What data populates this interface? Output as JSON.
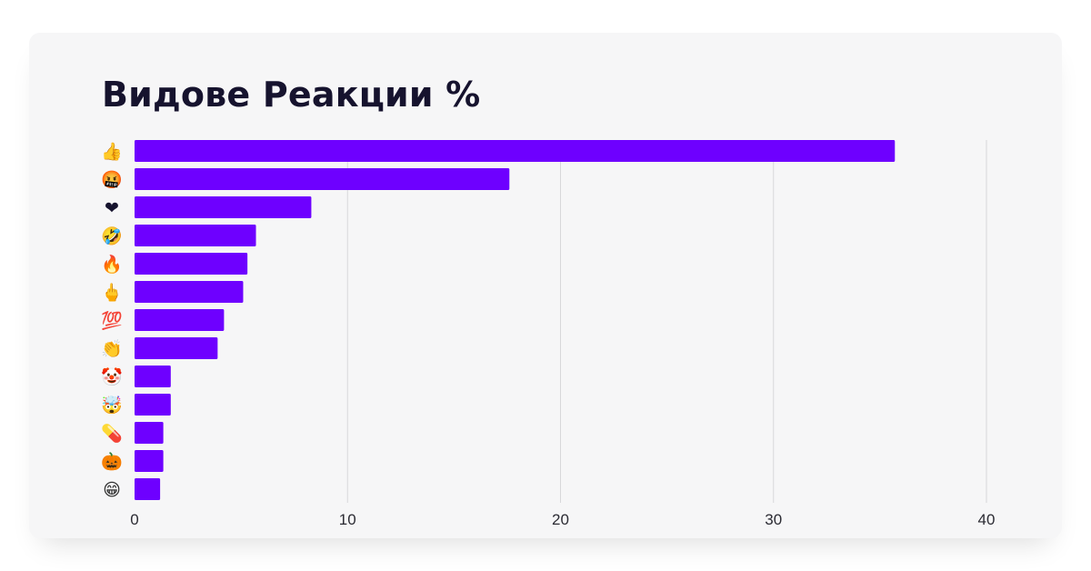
{
  "chart_data": {
    "type": "bar",
    "orientation": "horizontal",
    "title": "Видове Реакции %",
    "categories": [
      "👍",
      "🤬",
      "❤",
      "🤣",
      "🔥",
      "🖕",
      "💯",
      "👏",
      "🤡",
      "🤯",
      "💊",
      "🎃",
      "😁"
    ],
    "icons": [
      "thumbs-up",
      "face-with-symbols-on-mouth",
      "heart",
      "rolling-on-floor-laughing",
      "fire",
      "middle-finger",
      "hundred-points",
      "clapping-hands",
      "clown-face",
      "exploding-head",
      "pill",
      "jack-o-lantern",
      "beaming-face"
    ],
    "values": [
      35.7,
      17.6,
      8.3,
      5.7,
      5.3,
      5.1,
      4.2,
      3.9,
      1.7,
      1.7,
      1.35,
      1.35,
      1.2
    ],
    "xlim": [
      0,
      40
    ],
    "xticks": [
      "0",
      "10",
      "20",
      "30",
      "40"
    ],
    "grid": true,
    "bar_color": "#6e00ff",
    "xlabel": "",
    "ylabel": ""
  }
}
